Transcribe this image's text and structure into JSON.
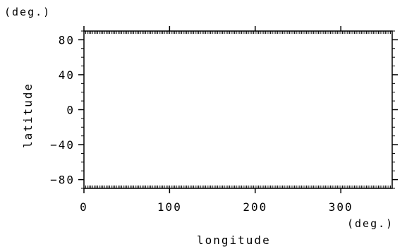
{
  "chart_data": {
    "type": "scatter",
    "title": "",
    "xlabel": "longitude",
    "ylabel": "latitude",
    "x_unit": "(deg.)",
    "y_unit": "(deg.)",
    "xlim": [
      0,
      360
    ],
    "ylim": [
      -90,
      90
    ],
    "xticks": [
      0,
      100,
      200,
      300
    ],
    "xtick_labels": [
      "0",
      "100",
      "200",
      "300"
    ],
    "yticks": [
      80,
      40,
      0,
      -40,
      -80
    ],
    "ytick_labels": [
      "80",
      "40",
      "0",
      "−40",
      "−80"
    ],
    "series": [],
    "grid": false,
    "legend": "none",
    "colors": {
      "axis": "#000000",
      "background": "#ffffff"
    }
  }
}
